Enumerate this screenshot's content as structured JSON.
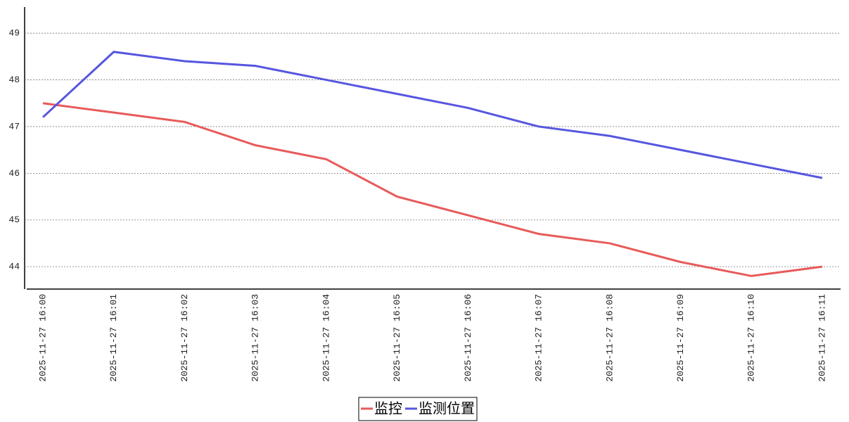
{
  "chart_data": {
    "type": "line",
    "categories": [
      "2025-11-27 16:00",
      "2025-11-27 16:01",
      "2025-11-27 16:02",
      "2025-11-27 16:03",
      "2025-11-27 16:04",
      "2025-11-27 16:05",
      "2025-11-27 16:06",
      "2025-11-27 16:07",
      "2025-11-27 16:08",
      "2025-11-27 16:09",
      "2025-11-27 16:10",
      "2025-11-27 16:11"
    ],
    "series": [
      {
        "name": "监控",
        "color": "#e85a5a",
        "values": [
          47.5,
          47.3,
          47.1,
          46.6,
          46.3,
          45.5,
          45.1,
          44.7,
          44.5,
          44.1,
          43.8,
          44.0
        ]
      },
      {
        "name": "监测位置",
        "color": "#5656e0",
        "values": [
          47.2,
          48.6,
          48.4,
          48.3,
          48.0,
          47.7,
          47.4,
          47.0,
          46.8,
          46.5,
          46.2,
          45.9
        ]
      }
    ],
    "ylim": [
      43.52,
      49.56
    ],
    "yticks": [
      44,
      45,
      46,
      47,
      48,
      49
    ],
    "grid": true,
    "legend": "bottom"
  }
}
